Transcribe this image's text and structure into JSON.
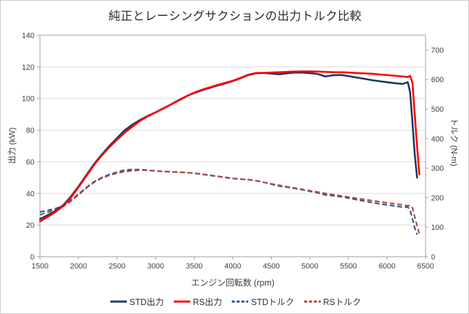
{
  "title": "純正とレーシングサクションの出力トルク比較",
  "axes": {
    "xlabel": "エンジン回転数 (rpm)",
    "ylabel_left": "出力 (kW)",
    "ylabel_right": "トルク (N-m)"
  },
  "colors": {
    "std_power": "#1F3864",
    "rs_power": "#FF0000",
    "std_torque": "#2E5584",
    "rs_torque": "#A94A44",
    "grid": "#D9D9D9",
    "axis_border": "#9C9C9C",
    "tick_text": "#404040"
  },
  "chart_data": {
    "type": "line",
    "title": "純正とレーシングサクションの出力トルク比較",
    "xlabel": "エンジン回転数 (rpm)",
    "ylabel_left": "出力 (kW)",
    "ylabel_right": "トルク (N-m)",
    "x_range": [
      1500,
      6500
    ],
    "x_ticks": [
      1500,
      2000,
      2500,
      3000,
      3500,
      4000,
      4500,
      5000,
      5500,
      6000,
      6500
    ],
    "y_left_range": [
      0,
      140
    ],
    "y_left_ticks": [
      0,
      20,
      40,
      60,
      80,
      100,
      120,
      140
    ],
    "y_right_range": [
      0,
      750
    ],
    "y_right_ticks": [
      0,
      100,
      200,
      300,
      400,
      500,
      600,
      700
    ],
    "grid": "horizontal-only",
    "legend_position": "bottom",
    "series": [
      {
        "id": "std-power",
        "name": "STD出力",
        "axis": "left",
        "unit": "kW",
        "color": "#1F3864",
        "dash": false,
        "points": [
          [
            1500,
            23.8
          ],
          [
            1600,
            26.3
          ],
          [
            1700,
            29.0
          ],
          [
            1800,
            32.5
          ],
          [
            1900,
            38.0
          ],
          [
            2000,
            44.5
          ],
          [
            2100,
            51.5
          ],
          [
            2200,
            58.5
          ],
          [
            2300,
            64.5
          ],
          [
            2400,
            70.0
          ],
          [
            2500,
            75.0
          ],
          [
            2600,
            80.0
          ],
          [
            2700,
            83.5
          ],
          [
            2800,
            86.5
          ],
          [
            2900,
            89.0
          ],
          [
            3000,
            91.3
          ],
          [
            3100,
            93.8
          ],
          [
            3200,
            96.3
          ],
          [
            3300,
            99.0
          ],
          [
            3400,
            101.5
          ],
          [
            3500,
            103.5
          ],
          [
            3600,
            105.2
          ],
          [
            3700,
            106.7
          ],
          [
            3800,
            108.2
          ],
          [
            3900,
            109.5
          ],
          [
            4000,
            111.0
          ],
          [
            4100,
            112.8
          ],
          [
            4200,
            114.8
          ],
          [
            4300,
            115.9
          ],
          [
            4400,
            116.1
          ],
          [
            4500,
            115.7
          ],
          [
            4600,
            115.3
          ],
          [
            4700,
            115.9
          ],
          [
            4800,
            116.4
          ],
          [
            4900,
            116.4
          ],
          [
            5000,
            116.0
          ],
          [
            5100,
            115.5
          ],
          [
            5200,
            113.9
          ],
          [
            5300,
            114.7
          ],
          [
            5400,
            114.9
          ],
          [
            5500,
            114.2
          ],
          [
            5600,
            113.3
          ],
          [
            5700,
            112.5
          ],
          [
            5800,
            111.6
          ],
          [
            5900,
            110.9
          ],
          [
            6000,
            110.3
          ],
          [
            6100,
            109.7
          ],
          [
            6200,
            109.2
          ],
          [
            6270,
            110.3
          ],
          [
            6300,
            104.0
          ],
          [
            6330,
            85.0
          ],
          [
            6360,
            65.0
          ],
          [
            6390,
            50.0
          ]
        ]
      },
      {
        "id": "rs-power",
        "name": "RS出力",
        "axis": "left",
        "unit": "kW",
        "color": "#FF0000",
        "dash": false,
        "points": [
          [
            1500,
            22.3
          ],
          [
            1600,
            25.2
          ],
          [
            1700,
            28.3
          ],
          [
            1800,
            32.0
          ],
          [
            1900,
            37.3
          ],
          [
            2000,
            44.0
          ],
          [
            2100,
            51.0
          ],
          [
            2200,
            58.0
          ],
          [
            2300,
            64.0
          ],
          [
            2400,
            69.3
          ],
          [
            2500,
            74.0
          ],
          [
            2600,
            78.5
          ],
          [
            2700,
            82.3
          ],
          [
            2800,
            86.0
          ],
          [
            2900,
            88.8
          ],
          [
            3000,
            91.2
          ],
          [
            3100,
            93.7
          ],
          [
            3200,
            96.2
          ],
          [
            3300,
            98.8
          ],
          [
            3400,
            101.3
          ],
          [
            3500,
            103.7
          ],
          [
            3600,
            105.5
          ],
          [
            3700,
            107.0
          ],
          [
            3800,
            108.5
          ],
          [
            3900,
            109.8
          ],
          [
            4000,
            111.2
          ],
          [
            4100,
            113.0
          ],
          [
            4200,
            115.0
          ],
          [
            4300,
            116.1
          ],
          [
            4400,
            116.2
          ],
          [
            4500,
            116.4
          ],
          [
            4600,
            116.6
          ],
          [
            4700,
            116.8
          ],
          [
            4800,
            117.0
          ],
          [
            4900,
            117.1
          ],
          [
            5000,
            117.1
          ],
          [
            5100,
            117.0
          ],
          [
            5200,
            116.8
          ],
          [
            5300,
            116.6
          ],
          [
            5400,
            116.6
          ],
          [
            5500,
            116.4
          ],
          [
            5600,
            116.1
          ],
          [
            5700,
            115.9
          ],
          [
            5800,
            115.6
          ],
          [
            5900,
            115.2
          ],
          [
            6000,
            114.8
          ],
          [
            6100,
            114.4
          ],
          [
            6200,
            113.9
          ],
          [
            6270,
            113.6
          ],
          [
            6300,
            114.3
          ],
          [
            6330,
            110.0
          ],
          [
            6360,
            90.0
          ],
          [
            6390,
            70.0
          ],
          [
            6420,
            52.0
          ]
        ]
      },
      {
        "id": "std-torque",
        "name": "STDトルク",
        "axis": "right",
        "unit": "N-m",
        "color": "#2E5584",
        "dash": true,
        "points": [
          [
            1500,
            151.5
          ],
          [
            1600,
            157.0
          ],
          [
            1700,
            162.9
          ],
          [
            1800,
            172.4
          ],
          [
            1900,
            191.0
          ],
          [
            2000,
            212.5
          ],
          [
            2100,
            234.2
          ],
          [
            2200,
            253.9
          ],
          [
            2300,
            267.8
          ],
          [
            2400,
            278.5
          ],
          [
            2500,
            286.5
          ],
          [
            2600,
            293.8
          ],
          [
            2700,
            295.3
          ],
          [
            2800,
            295.0
          ],
          [
            2900,
            293.1
          ],
          [
            3000,
            290.6
          ],
          [
            3100,
            288.9
          ],
          [
            3200,
            287.4
          ],
          [
            3300,
            286.5
          ],
          [
            3400,
            285.1
          ],
          [
            3500,
            282.4
          ],
          [
            3600,
            279.0
          ],
          [
            3700,
            275.4
          ],
          [
            3800,
            271.9
          ],
          [
            3900,
            268.1
          ],
          [
            4000,
            265.0
          ],
          [
            4100,
            262.7
          ],
          [
            4200,
            261.0
          ],
          [
            4300,
            257.4
          ],
          [
            4400,
            252.0
          ],
          [
            4500,
            245.5
          ],
          [
            4600,
            239.3
          ],
          [
            4700,
            235.5
          ],
          [
            4800,
            231.6
          ],
          [
            4900,
            226.8
          ],
          [
            5000,
            221.5
          ],
          [
            5100,
            216.3
          ],
          [
            5200,
            209.2
          ],
          [
            5300,
            206.7
          ],
          [
            5400,
            203.2
          ],
          [
            5500,
            198.3
          ],
          [
            5600,
            193.2
          ],
          [
            5700,
            188.5
          ],
          [
            5800,
            183.7
          ],
          [
            5900,
            179.5
          ],
          [
            6000,
            175.5
          ],
          [
            6100,
            171.7
          ],
          [
            6200,
            168.2
          ],
          [
            6270,
            168.0
          ],
          [
            6300,
            157.6
          ],
          [
            6330,
            128.2
          ],
          [
            6360,
            97.6
          ],
          [
            6390,
            74.7
          ]
        ]
      },
      {
        "id": "rs-torque",
        "name": "RSトルク",
        "axis": "right",
        "unit": "N-m",
        "color": "#A94A44",
        "dash": true,
        "points": [
          [
            1500,
            142.0
          ],
          [
            1600,
            150.4
          ],
          [
            1700,
            158.9
          ],
          [
            1800,
            169.8
          ],
          [
            1900,
            187.5
          ],
          [
            2000,
            210.1
          ],
          [
            2100,
            231.9
          ],
          [
            2200,
            251.7
          ],
          [
            2300,
            265.7
          ],
          [
            2400,
            275.7
          ],
          [
            2500,
            282.7
          ],
          [
            2600,
            288.3
          ],
          [
            2700,
            291.1
          ],
          [
            2800,
            293.3
          ],
          [
            2900,
            292.4
          ],
          [
            3000,
            290.3
          ],
          [
            3100,
            288.6
          ],
          [
            3200,
            287.1
          ],
          [
            3300,
            285.9
          ],
          [
            3400,
            284.5
          ],
          [
            3500,
            282.9
          ],
          [
            3600,
            279.9
          ],
          [
            3700,
            276.1
          ],
          [
            3800,
            272.6
          ],
          [
            3900,
            268.9
          ],
          [
            4000,
            265.5
          ],
          [
            4100,
            263.2
          ],
          [
            4200,
            261.5
          ],
          [
            4300,
            257.8
          ],
          [
            4400,
            252.2
          ],
          [
            4500,
            247.0
          ],
          [
            4600,
            242.1
          ],
          [
            4700,
            237.3
          ],
          [
            4800,
            232.8
          ],
          [
            4900,
            228.2
          ],
          [
            5000,
            223.7
          ],
          [
            5100,
            219.1
          ],
          [
            5200,
            214.5
          ],
          [
            5300,
            210.1
          ],
          [
            5400,
            206.2
          ],
          [
            5500,
            202.1
          ],
          [
            5600,
            198.0
          ],
          [
            5700,
            194.2
          ],
          [
            5800,
            190.3
          ],
          [
            5900,
            186.5
          ],
          [
            6000,
            182.7
          ],
          [
            6100,
            179.1
          ],
          [
            6200,
            175.4
          ],
          [
            6270,
            173.0
          ],
          [
            6300,
            173.2
          ],
          [
            6330,
            165.9
          ],
          [
            6360,
            135.1
          ],
          [
            6390,
            104.6
          ],
          [
            6420,
            77.3
          ]
        ]
      }
    ]
  }
}
